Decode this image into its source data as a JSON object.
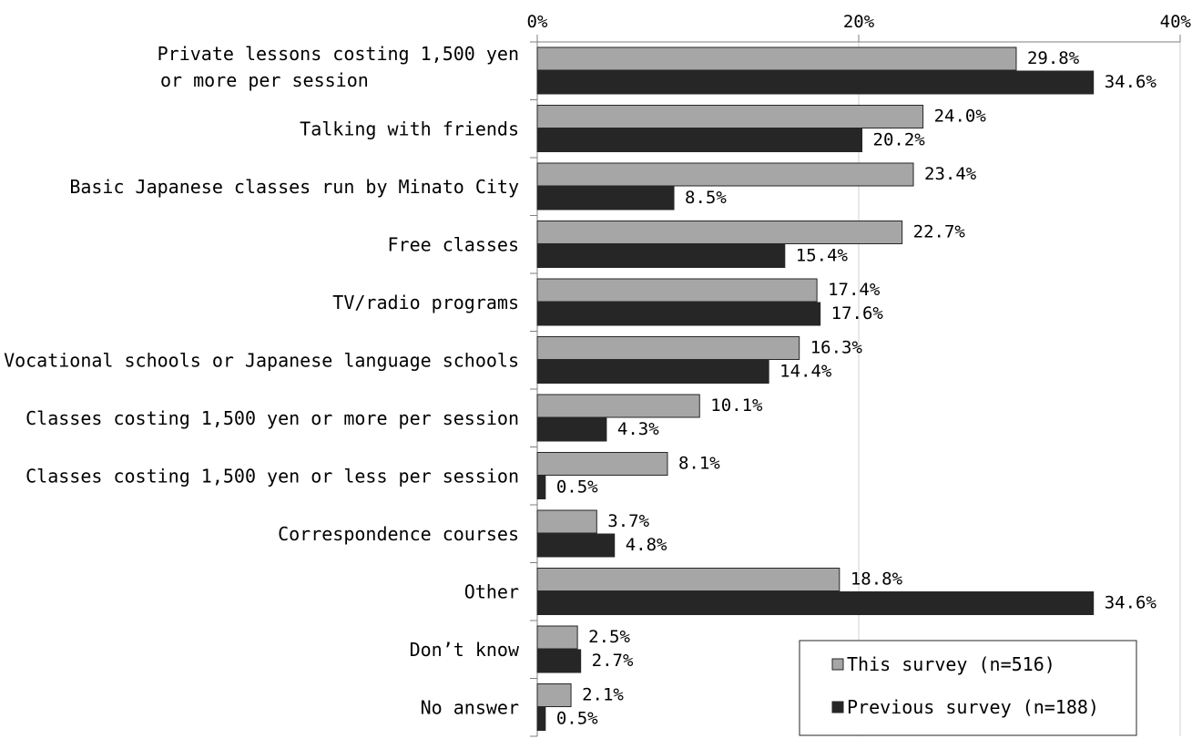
{
  "chart_data": {
    "type": "bar",
    "orientation": "horizontal",
    "categories": [
      [
        "Private lessons costing 1,500 yen",
        "or more per session"
      ],
      [
        "Talking with friends"
      ],
      [
        "Basic Japanese classes run by Minato City"
      ],
      [
        "Free classes"
      ],
      [
        "TV/radio programs"
      ],
      [
        "Vocational schools or Japanese language schools"
      ],
      [
        "Classes costing 1,500 yen or more per session"
      ],
      [
        "Classes costing 1,500 yen or less per session"
      ],
      [
        "Correspondence courses"
      ],
      [
        "Other"
      ],
      [
        "Don’t know"
      ],
      [
        "No answer"
      ]
    ],
    "series": [
      {
        "name": "This survey (n=516)",
        "color": "#a6a6a6",
        "values": [
          29.8,
          24.0,
          23.4,
          22.7,
          17.4,
          16.3,
          10.1,
          8.1,
          3.7,
          18.8,
          2.5,
          2.1
        ],
        "labels": [
          "29.8%",
          "24.0%",
          "23.4%",
          "22.7%",
          "17.4%",
          "16.3%",
          "10.1%",
          "8.1%",
          "3.7%",
          "18.8%",
          "2.5%",
          "2.1%"
        ]
      },
      {
        "name": "Previous survey (n=188)",
        "color": "#262626",
        "values": [
          34.6,
          20.2,
          8.5,
          15.4,
          17.6,
          14.4,
          4.3,
          0.5,
          4.8,
          34.6,
          2.7,
          0.5
        ],
        "labels": [
          "34.6%",
          "20.2%",
          "8.5%",
          "15.4%",
          "17.6%",
          "14.4%",
          "4.3%",
          "0.5%",
          "4.8%",
          "34.6%",
          "2.7%",
          "0.5%"
        ]
      }
    ],
    "xlim": [
      0,
      40
    ],
    "ticks": [
      0,
      20,
      40
    ],
    "tick_labels": [
      "0%",
      "20%",
      "40%"
    ],
    "grid": true,
    "legend": {
      "position": "bottom-right",
      "entries": [
        "This survey (n=516)",
        "Previous survey (n=188)"
      ]
    }
  }
}
